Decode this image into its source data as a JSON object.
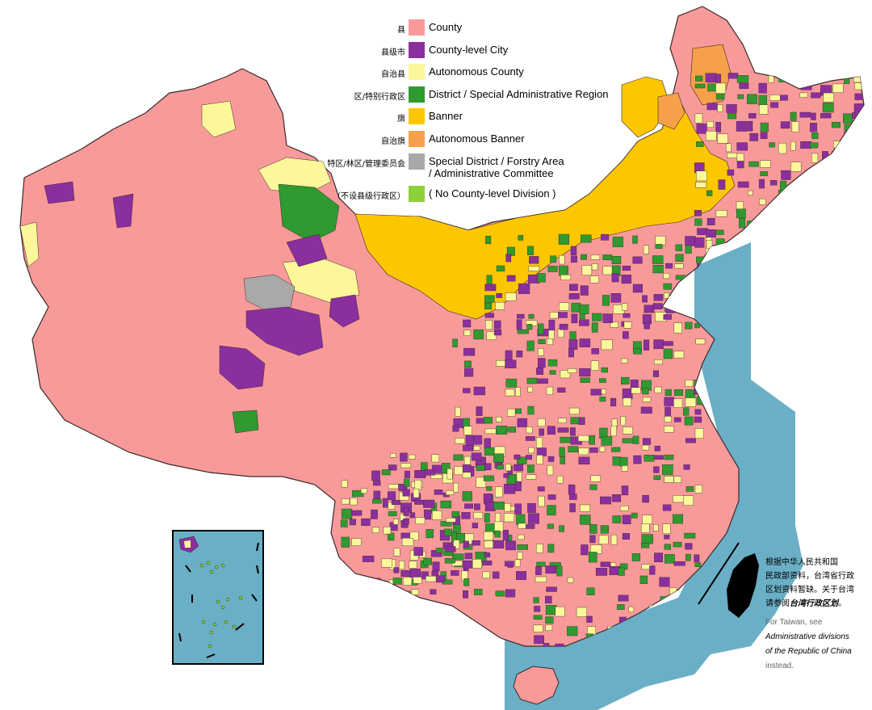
{
  "legend": [
    {
      "zh": "县",
      "en": "County",
      "color": "#f99a9a"
    },
    {
      "zh": "县级市",
      "en": "County-level City",
      "color": "#8b2f9e"
    },
    {
      "zh": "自治县",
      "en": "Autonomous County",
      "color": "#fbf79a"
    },
    {
      "zh": "区/特别行政区",
      "en": "District / Special Administrative Region",
      "color": "#2f9a2f"
    },
    {
      "zh": "旗",
      "en": "Banner",
      "color": "#fdc700"
    },
    {
      "zh": "自治旗",
      "en": "Autonomous Banner",
      "color": "#f7a04a"
    },
    {
      "zh": "特区/林区/管理委员会",
      "en": "Special District / Forstry Area",
      "en2": "/ Administrative Committee",
      "color": "#a9a9a9"
    },
    {
      "zh": "（不设县级行政区）",
      "en": "( No County-level Division )",
      "color": "#8dd13a"
    }
  ],
  "colors": {
    "sea": "#6aafc6",
    "border": "#3a2a2a",
    "taiwan": "#000000"
  },
  "note": {
    "zh_line1": "根据中华人民共和国",
    "zh_line2": "民政部资料，台湾省行政",
    "zh_line3": "区划资料暂缺。关于台湾",
    "zh_line4_a": "请参阅",
    "zh_line4_b": "台湾行政区划",
    "zh_line4_c": "。",
    "en_line1": "For Taiwan, see",
    "en_link1": "Administrative divisions",
    "en_link2": "of the Republic of China",
    "en_line4": "instead."
  }
}
